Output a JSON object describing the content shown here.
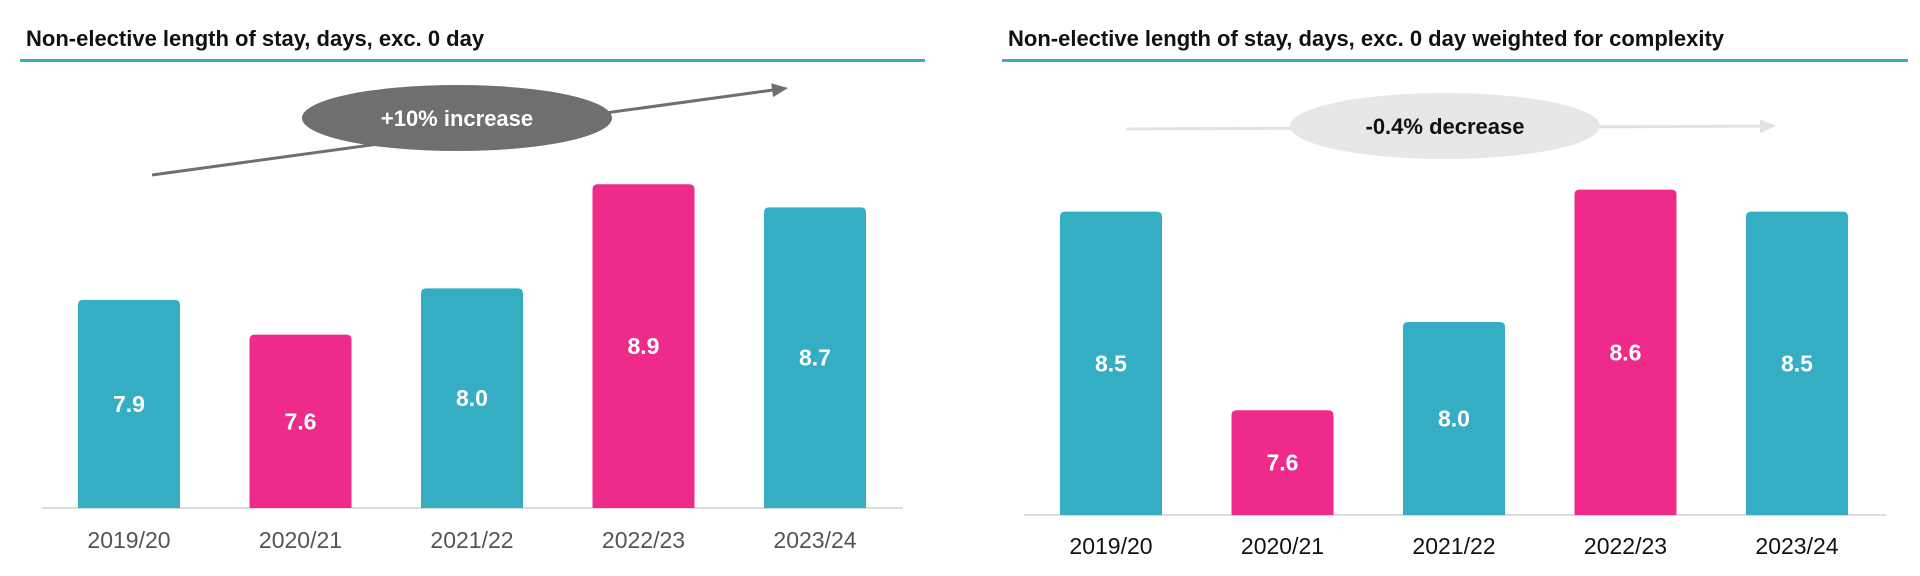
{
  "colors": {
    "teal": "#35aec4",
    "pink": "#ee2b8b",
    "rule": "#35aec4",
    "axis": "#d0d0d0",
    "text": "#111111"
  },
  "chart_data": [
    {
      "type": "bar",
      "title": "Non-elective length of stay, days, exc. 0 day",
      "categories": [
        "2019/20",
        "2020/21",
        "2021/22",
        "2022/23",
        "2023/24"
      ],
      "values": [
        7.9,
        7.6,
        8.0,
        8.9,
        8.7
      ],
      "bar_colors": [
        "#35aec4",
        "#ee2b8b",
        "#35aec4",
        "#ee2b8b",
        "#35aec4"
      ],
      "ylim": [
        6.1,
        9.3
      ],
      "grid": false,
      "tick_color": "#555555",
      "callout": {
        "text": "+10% increase",
        "fill": "#6f6f6f",
        "text_color": "#ffffff",
        "arrow_color": "#6f6f6f",
        "trend": "up"
      }
    },
    {
      "type": "bar",
      "title": "Non-elective length of stay, days, exc. 0 day weighted for complexity",
      "categories": [
        "2019/20",
        "2020/21",
        "2021/22",
        "2022/23",
        "2023/24"
      ],
      "values": [
        8.5,
        7.6,
        8.0,
        8.6,
        8.5
      ],
      "bar_colors": [
        "#35aec4",
        "#ee2b8b",
        "#35aec4",
        "#ee2b8b",
        "#35aec4"
      ],
      "ylim": [
        7.125,
        8.775
      ],
      "grid": false,
      "tick_color": "#111111",
      "callout": {
        "text": "-0.4% decrease",
        "fill": "#e7e7e7",
        "text_color": "#111111",
        "arrow_color": "#e2e2e2",
        "trend": "flat"
      }
    }
  ]
}
